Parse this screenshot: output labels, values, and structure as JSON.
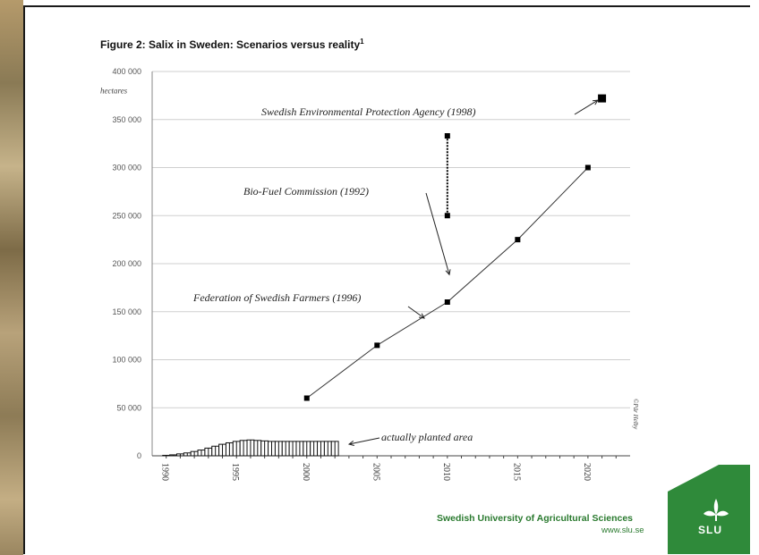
{
  "figure": {
    "title": "Figure 2: Salix in Sweden: Scenarios versus reality",
    "title_sup": "1"
  },
  "chart_data": {
    "type": "line",
    "title": "Figure 2: Salix in Sweden: Scenarios versus reality",
    "ylabel": "hectares",
    "xlabel": "",
    "xlim": [
      1989,
      2023
    ],
    "ylim": [
      0,
      400000
    ],
    "ytick_labels": [
      "0",
      "50 000",
      "100 000",
      "150 000",
      "200 000",
      "250 000",
      "300 000",
      "350 000",
      "400 000"
    ],
    "ytick_values": [
      0,
      50000,
      100000,
      150000,
      200000,
      250000,
      300000,
      350000,
      400000
    ],
    "xtick_labels": [
      "1990",
      "1995",
      "2000",
      "2005",
      "2010",
      "2015",
      "2020"
    ],
    "xtick_values": [
      1990,
      1995,
      2000,
      2005,
      2010,
      2015,
      2020
    ],
    "grid": true,
    "series": [
      {
        "name": "Federation of Swedish Farmers (1996)",
        "kind": "line-markers",
        "x": [
          2000,
          2005,
          2010,
          2015,
          2020
        ],
        "y": [
          60000,
          115000,
          160000,
          225000,
          300000
        ]
      },
      {
        "name": "Bio-Fuel Commission (1992)",
        "kind": "range",
        "x": [
          2010,
          2010
        ],
        "y": [
          250000,
          333000
        ]
      },
      {
        "name": "Swedish Environmental Protection Agency (1998)",
        "kind": "point",
        "x": [
          2021
        ],
        "y": [
          372000
        ]
      },
      {
        "name": "actually planted area",
        "kind": "bars",
        "x": [
          1990,
          1990.5,
          1991,
          1991.5,
          1992,
          1992.5,
          1993,
          1993.5,
          1994,
          1994.5,
          1995,
          1995.5,
          1996,
          1996.5,
          1997,
          1997.5,
          1998,
          1998.5,
          1999,
          1999.5,
          2000,
          2000.5,
          2001,
          2001.5,
          2002
        ],
        "y": [
          500,
          1000,
          2000,
          3000,
          4500,
          6000,
          8000,
          10000,
          12000,
          13500,
          15000,
          16000,
          16500,
          16000,
          15500,
          15000,
          15000,
          15000,
          15000,
          15000,
          15000,
          15000,
          15000,
          15000,
          15000
        ]
      }
    ],
    "annotations": [
      "Swedish Environmental Protection Agency (1998)",
      "Bio-Fuel Commission (1992)",
      "Federation of Swedish Farmers (1996)",
      "actually planted area"
    ],
    "credit": "©Pär Helby"
  },
  "footer": {
    "org_name": "Swedish University of Agricultural Sciences",
    "url": "www.slu.se",
    "logo_text": "SLU"
  },
  "colors": {
    "brand_green": "#2f8a3a",
    "text_green": "#2a7a2f",
    "line": "#333333",
    "grid": "#cfcfcf"
  }
}
